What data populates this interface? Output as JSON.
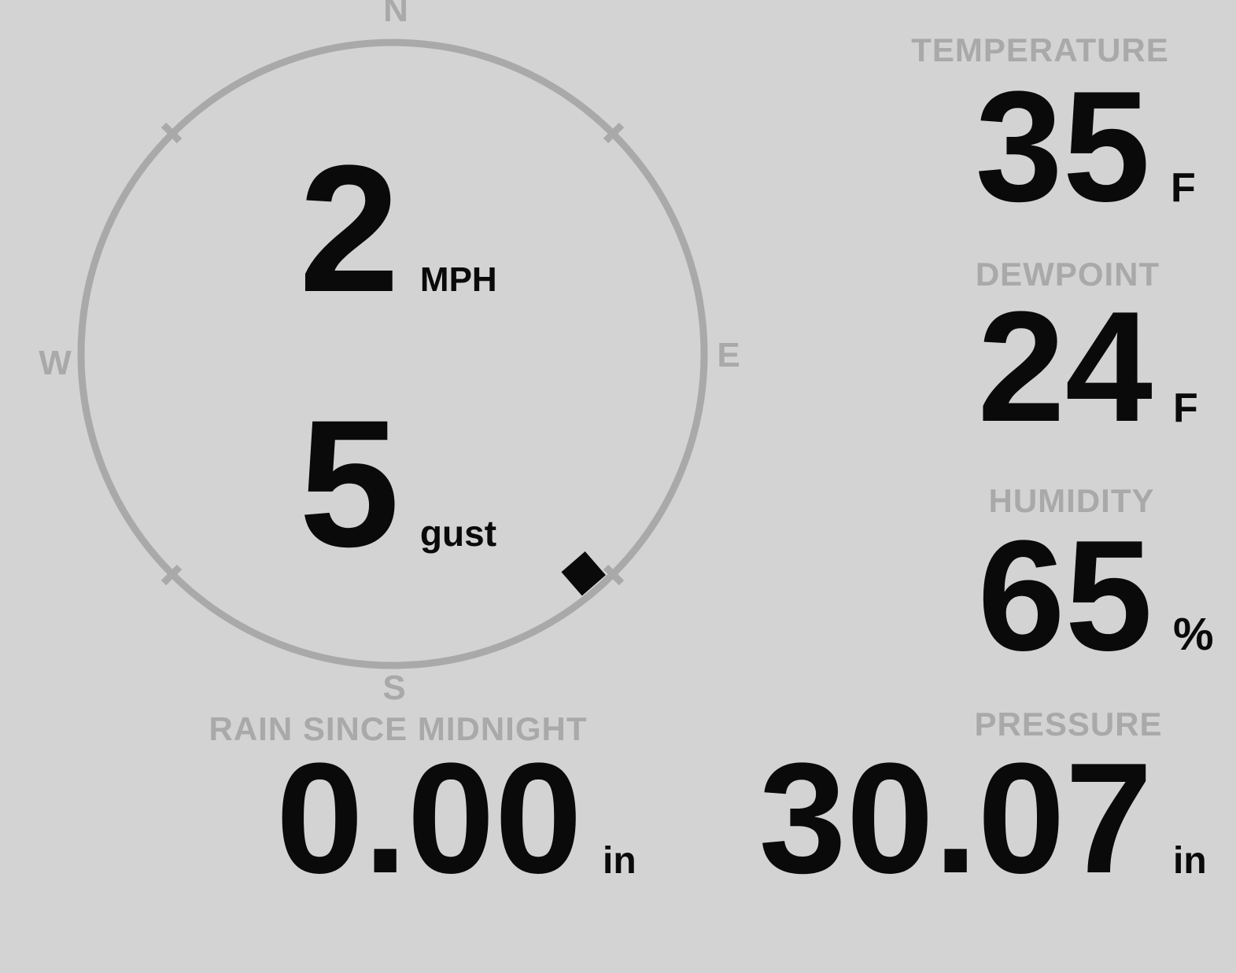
{
  "colors": {
    "background": "#d3d3d3",
    "muted": "#a9a9a9",
    "text": "#0a0a0a"
  },
  "compass": {
    "cardinals": {
      "north": "N",
      "east": "E",
      "south": "S",
      "west": "W"
    },
    "wind_speed": {
      "value": "2",
      "unit": "MPH"
    },
    "wind_gust": {
      "value": "5",
      "unit": "gust"
    },
    "direction_deg": 139
  },
  "metrics": {
    "temperature": {
      "label": "TEMPERATURE",
      "value": "35",
      "unit": "F"
    },
    "dewpoint": {
      "label": "DEWPOINT",
      "value": "24",
      "unit": "F"
    },
    "humidity": {
      "label": "HUMIDITY",
      "value": "65",
      "unit": "%"
    },
    "rain_since_midnight": {
      "label": "RAIN SINCE MIDNIGHT",
      "value": "0.00",
      "unit": "in"
    },
    "pressure": {
      "label": "PRESSURE",
      "value": "30.07",
      "unit": "in"
    }
  }
}
